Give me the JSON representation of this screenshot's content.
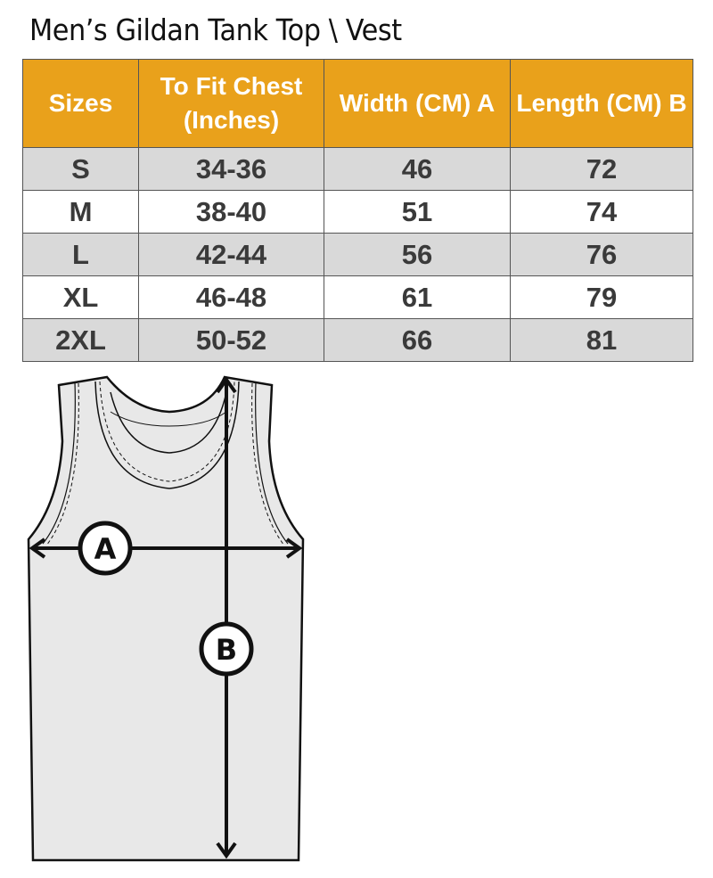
{
  "title": "Men’s Gildan Tank Top \\ Vest",
  "table": {
    "headers": [
      "Sizes",
      "To Fit Chest (Inches)",
      "Width (CM) A",
      "Length  (CM) B"
    ],
    "rows": [
      [
        "S",
        "34-36",
        "46",
        "72"
      ],
      [
        "M",
        "38-40",
        "51",
        "74"
      ],
      [
        "L",
        "42-44",
        "56",
        "76"
      ],
      [
        "XL",
        "46-48",
        "61",
        "79"
      ],
      [
        "2XL",
        "50-52",
        "66",
        "81"
      ]
    ]
  },
  "diagram": {
    "label_a": "A",
    "label_b": "B"
  },
  "colors": {
    "header": "#E9A11B",
    "stripe": "#d9d9d9"
  }
}
